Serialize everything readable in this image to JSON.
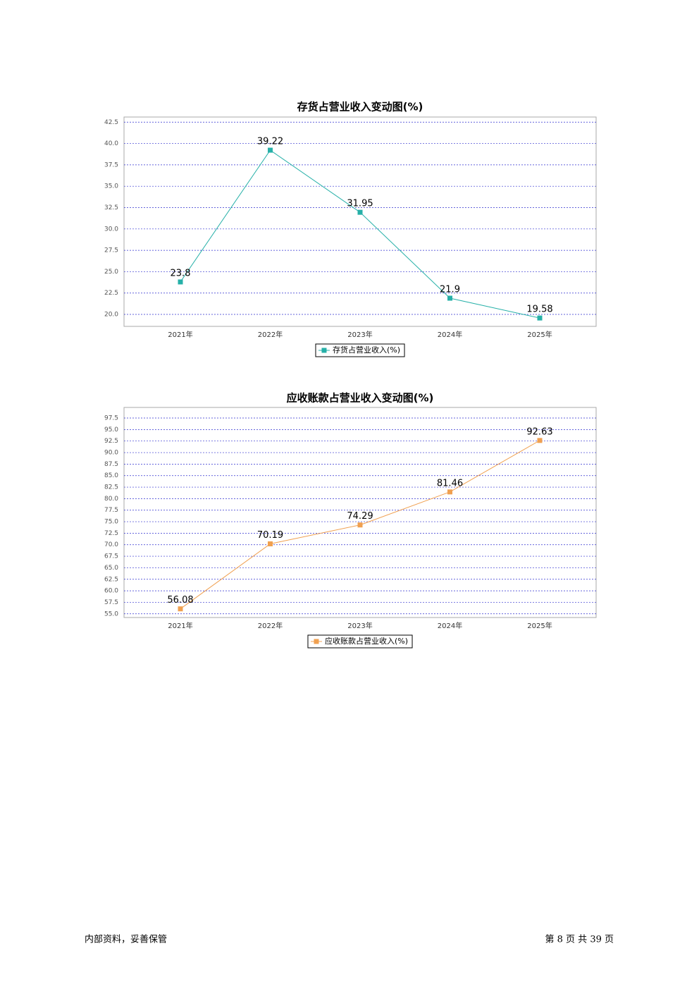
{
  "chart_data": [
    {
      "type": "line",
      "title": "存货占营业收入变动图(%)",
      "categories": [
        "2021年",
        "2022年",
        "2023年",
        "2024年",
        "2025年"
      ],
      "series": [
        {
          "name": "存货占营业收入(%)",
          "color": "#26b0a8",
          "values": [
            23.8,
            39.22,
            31.95,
            21.9,
            19.58
          ]
        }
      ],
      "ylim": [
        18.6,
        43.1
      ],
      "yticks": [
        {
          "value": 20,
          "label": "20.0"
        },
        22.5,
        {
          "value": 25,
          "label": "25.0"
        },
        27.5,
        {
          "value": 30,
          "label": "30.0"
        },
        32.5,
        {
          "value": 35,
          "label": "35.0"
        },
        37.5,
        {
          "value": 40,
          "label": "40.0"
        },
        42.5
      ],
      "grid": true
    },
    {
      "type": "line",
      "title": "应收账款占营业收入变动图(%)",
      "categories": [
        "2021年",
        "2022年",
        "2023年",
        "2024年",
        "2025年"
      ],
      "series": [
        {
          "name": "应收账款占营业收入(%)",
          "color": "#f0a050",
          "values": [
            56.08,
            70.19,
            74.29,
            81.46,
            92.63
          ]
        }
      ],
      "ylim": [
        54.2,
        99.8
      ],
      "yticks": [
        {
          "value": 55,
          "label": "55.0"
        },
        57.5,
        {
          "value": 60,
          "label": "60.0"
        },
        62.5,
        {
          "value": 65,
          "label": "65.0"
        },
        67.5,
        {
          "value": 70,
          "label": "70.0"
        },
        72.5,
        {
          "value": 75,
          "label": "75.0"
        },
        77.5,
        {
          "value": 80,
          "label": "80.0"
        },
        82.5,
        {
          "value": 85,
          "label": "85.0"
        },
        87.5,
        {
          "value": 90,
          "label": "90.0"
        },
        92.5,
        {
          "value": 95,
          "label": "95.0"
        },
        97.5
      ],
      "grid": true
    }
  ],
  "footer": {
    "left": "内部资料，妥善保管",
    "right": "第 8 页  共 39 页"
  }
}
